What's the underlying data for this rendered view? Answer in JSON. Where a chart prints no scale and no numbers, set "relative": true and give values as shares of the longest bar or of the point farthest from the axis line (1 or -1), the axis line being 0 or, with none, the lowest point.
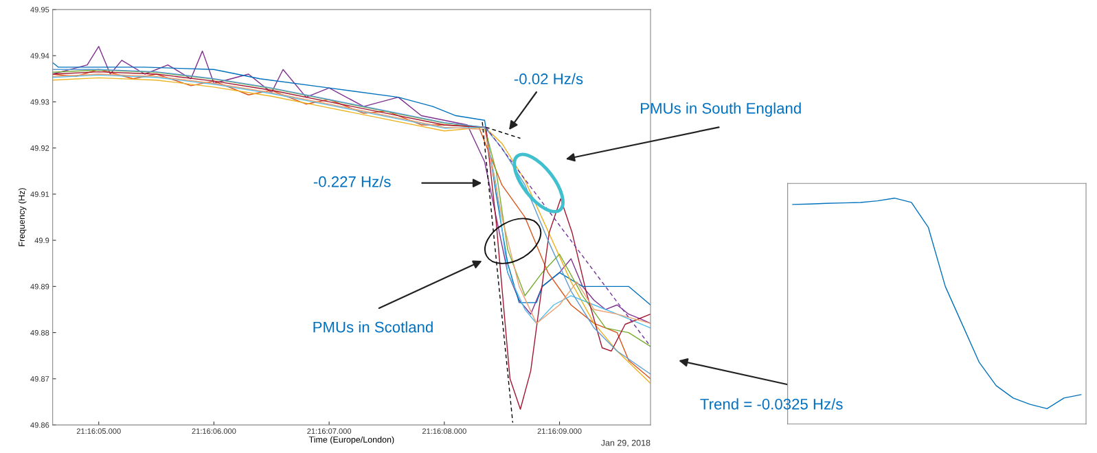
{
  "chart_data": [
    {
      "type": "line",
      "xlabel": "Time (Europe/London)",
      "ylabel": "Frequency (Hz)",
      "xlim": [
        "2018-01-29T21:16:04.6",
        "2018-01-29T21:16:09.79"
      ],
      "xticks": [
        {
          "value": "2018-01-29T21:16:05",
          "label": "21:16:05.000"
        },
        {
          "value": "2018-01-29T21:16:06",
          "label": "21:16:06.000"
        },
        {
          "value": "2018-01-29T21:16:07",
          "label": "21:16:07.000"
        },
        {
          "value": "2018-01-29T21:16:08",
          "label": "21:16:08.000"
        },
        {
          "value": "2018-01-29T21:16:09",
          "label": "21:16:09.000"
        }
      ],
      "ylim": [
        49.86,
        49.95
      ],
      "yticks": [
        49.86,
        49.87,
        49.88,
        49.89,
        49.9,
        49.91,
        49.92,
        49.93,
        49.94,
        49.95
      ],
      "line_style": "solid",
      "series": [
        {
          "color": "#7e2f8e",
          "x": [
            "2018-01-29T21:16:04.6",
            "2018-01-29T21:16:04.9",
            "2018-01-29T21:16:05.0",
            "2018-01-29T21:16:05.1",
            "2018-01-29T21:16:05.2",
            "2018-01-29T21:16:05.4",
            "2018-01-29T21:16:05.6",
            "2018-01-29T21:16:05.8",
            "2018-01-29T21:16:05.9",
            "2018-01-29T21:16:06.0",
            "2018-01-29T21:16:06.3",
            "2018-01-29T21:16:06.5",
            "2018-01-29T21:16:06.6",
            "2018-01-29T21:16:06.8",
            "2018-01-29T21:16:07.0",
            "2018-01-29T21:16:07.3",
            "2018-01-29T21:16:07.6",
            "2018-01-29T21:16:07.8",
            "2018-01-29T21:16:08.0",
            "2018-01-29T21:16:08.2",
            "2018-01-29T21:16:08.35",
            "2018-01-29T21:16:08.45",
            "2018-01-29T21:16:08.55",
            "2018-01-29T21:16:08.65",
            "2018-01-29T21:16:08.75",
            "2018-01-29T21:16:08.85",
            "2018-01-29T21:16:09.0",
            "2018-01-29T21:16:09.1",
            "2018-01-29T21:16:09.2",
            "2018-01-29T21:16:09.3",
            "2018-01-29T21:16:09.4",
            "2018-01-29T21:16:09.5",
            "2018-01-29T21:16:09.6",
            "2018-01-29T21:16:09.7",
            "2018-01-29T21:16:09.79"
          ],
          "values": [
            49.936,
            49.938,
            49.942,
            49.936,
            49.939,
            49.936,
            49.938,
            49.935,
            49.941,
            49.934,
            49.936,
            49.932,
            49.937,
            49.931,
            49.933,
            49.929,
            49.931,
            49.927,
            49.926,
            49.925,
            49.917,
            49.905,
            49.893,
            49.887,
            49.884,
            49.89,
            49.893,
            49.896,
            49.89,
            49.887,
            49.885,
            49.886,
            49.884,
            49.883,
            49.882
          ]
        },
        {
          "color": "#0072bd",
          "x": [
            "2018-01-29T21:16:04.6",
            "2018-01-29T21:16:04.65",
            "2018-01-29T21:16:05.4",
            "2018-01-29T21:16:06.0",
            "2018-01-29T21:16:06.4",
            "2018-01-29T21:16:07.0",
            "2018-01-29T21:16:07.6",
            "2018-01-29T21:16:07.9",
            "2018-01-29T21:16:08.1",
            "2018-01-29T21:16:08.35",
            "2018-01-29T21:16:08.45",
            "2018-01-29T21:16:08.55",
            "2018-01-29T21:16:08.65",
            "2018-01-29T21:16:08.8",
            "2018-01-29T21:16:08.85",
            "2018-01-29T21:16:09.0",
            "2018-01-29T21:16:09.2",
            "2018-01-29T21:16:09.4",
            "2018-01-29T21:16:09.6",
            "2018-01-29T21:16:09.79"
          ],
          "values": [
            49.9385,
            49.9375,
            49.9375,
            49.937,
            49.935,
            49.933,
            49.931,
            49.929,
            49.927,
            49.926,
            49.91,
            49.895,
            49.8865,
            49.8865,
            49.89,
            49.893,
            49.89,
            49.89,
            49.89,
            49.886
          ]
        },
        {
          "color": "#d95319",
          "x": [
            "2018-01-29T21:16:04.6",
            "2018-01-29T21:16:04.8",
            "2018-01-29T21:16:05.0",
            "2018-01-29T21:16:05.3",
            "2018-01-29T21:16:05.5",
            "2018-01-29T21:16:05.8",
            "2018-01-29T21:16:06.0",
            "2018-01-29T21:16:06.3",
            "2018-01-29T21:16:06.5",
            "2018-01-29T21:16:06.8",
            "2018-01-29T21:16:07.0",
            "2018-01-29T21:16:07.3",
            "2018-01-29T21:16:07.5",
            "2018-01-29T21:16:07.8",
            "2018-01-29T21:16:08.0",
            "2018-01-29T21:16:08.3",
            "2018-01-29T21:16:08.5",
            "2018-01-29T21:16:08.7",
            "2018-01-29T21:16:08.9",
            "2018-01-29T21:16:09.1",
            "2018-01-29T21:16:09.3",
            "2018-01-29T21:16:09.5",
            "2018-01-29T21:16:09.6",
            "2018-01-29T21:16:09.79"
          ],
          "values": [
            49.936,
            49.9355,
            49.937,
            49.935,
            49.936,
            49.9335,
            49.9345,
            49.9315,
            49.9325,
            49.9295,
            49.9305,
            49.9275,
            49.928,
            49.925,
            49.925,
            49.9245,
            49.912,
            49.905,
            49.893,
            49.886,
            49.882,
            49.88,
            49.874,
            49.87
          ]
        },
        {
          "color": "#edb120",
          "x": [
            "2018-01-29T21:16:04.6",
            "2018-01-29T21:16:05.0",
            "2018-01-29T21:16:05.5",
            "2018-01-29T21:16:06.0",
            "2018-01-29T21:16:06.5",
            "2018-01-29T21:16:07.0",
            "2018-01-29T21:16:07.5",
            "2018-01-29T21:16:08.0",
            "2018-01-29T21:16:08.35",
            "2018-01-29T21:16:08.5",
            "2018-01-29T21:16:08.7",
            "2018-01-29T21:16:08.9",
            "2018-01-29T21:16:09.1",
            "2018-01-29T21:16:09.3",
            "2018-01-29T21:16:09.5",
            "2018-01-29T21:16:09.79"
          ],
          "values": [
            49.9347,
            49.9352,
            49.9347,
            49.9332,
            49.9312,
            49.9287,
            49.9262,
            49.9237,
            49.9245,
            49.921,
            49.913,
            49.902,
            49.891,
            49.882,
            49.876,
            49.869
          ]
        },
        {
          "color": "#4dbeee",
          "x": [
            "2018-01-29T21:16:04.6",
            "2018-01-29T21:16:05.0",
            "2018-01-29T21:16:05.5",
            "2018-01-29T21:16:06.0",
            "2018-01-29T21:16:06.5",
            "2018-01-29T21:16:07.0",
            "2018-01-29T21:16:07.5",
            "2018-01-29T21:16:08.0",
            "2018-01-29T21:16:08.35",
            "2018-01-29T21:16:08.45",
            "2018-01-29T21:16:08.55",
            "2018-01-29T21:16:08.7",
            "2018-01-29T21:16:08.8",
            "2018-01-29T21:16:08.95",
            "2018-01-29T21:16:09.1",
            "2018-01-29T21:16:09.3",
            "2018-01-29T21:16:09.5",
            "2018-01-29T21:16:09.79"
          ],
          "values": [
            49.9353,
            49.9358,
            49.9353,
            49.9338,
            49.9318,
            49.9293,
            49.9268,
            49.9243,
            49.9245,
            49.912,
            49.893,
            49.885,
            49.882,
            49.886,
            49.888,
            49.886,
            49.884,
            49.881
          ]
        },
        {
          "color": "#77ac30",
          "x": [
            "2018-01-29T21:16:04.6",
            "2018-01-29T21:16:05.0",
            "2018-01-29T21:16:05.5",
            "2018-01-29T21:16:06.0",
            "2018-01-29T21:16:06.5",
            "2018-01-29T21:16:07.0",
            "2018-01-29T21:16:07.5",
            "2018-01-29T21:16:08.0",
            "2018-01-29T21:16:08.35",
            "2018-01-29T21:16:08.45",
            "2018-01-29T21:16:08.55",
            "2018-01-29T21:16:08.7",
            "2018-01-29T21:16:08.85",
            "2018-01-29T21:16:09.0",
            "2018-01-29T21:16:09.2",
            "2018-01-29T21:16:09.4",
            "2018-01-29T21:16:09.6",
            "2018-01-29T21:16:09.79"
          ],
          "values": [
            49.9364,
            49.9369,
            49.9364,
            49.9349,
            49.9329,
            49.9304,
            49.9279,
            49.9254,
            49.9245,
            49.915,
            49.898,
            49.888,
            49.893,
            49.897,
            49.888,
            49.881,
            49.88,
            49.877
          ]
        },
        {
          "color": "#a2142f",
          "x": [
            "2018-01-29T21:16:04.6",
            "2018-01-29T21:16:05.0",
            "2018-01-29T21:16:05.5",
            "2018-01-29T21:16:06.0",
            "2018-01-29T21:16:06.5",
            "2018-01-29T21:16:07.0",
            "2018-01-29T21:16:07.5",
            "2018-01-29T21:16:08.0",
            "2018-01-29T21:16:08.36",
            "2018-01-29T21:16:08.45",
            "2018-01-29T21:16:08.57",
            "2018-01-29T21:16:08.66",
            "2018-01-29T21:16:08.75",
            "2018-01-29T21:16:08.83",
            "2018-01-29T21:16:08.91",
            "2018-01-29T21:16:09.01",
            "2018-01-29T21:16:09.11",
            "2018-01-29T21:16:09.23",
            "2018-01-29T21:16:09.37",
            "2018-01-29T21:16:09.45",
            "2018-01-29T21:16:09.57",
            "2018-01-29T21:16:09.79"
          ],
          "values": [
            49.936,
            49.9365,
            49.936,
            49.9345,
            49.9325,
            49.93,
            49.9275,
            49.925,
            49.9245,
            49.904,
            49.87,
            49.8634,
            49.8717,
            49.8867,
            49.9016,
            49.909,
            49.9016,
            49.889,
            49.8767,
            49.876,
            49.8818,
            49.884
          ]
        },
        {
          "color": "#f0a070",
          "x": [
            "2018-01-29T21:16:04.6",
            "2018-01-29T21:16:05.0",
            "2018-01-29T21:16:05.5",
            "2018-01-29T21:16:06.0",
            "2018-01-29T21:16:06.5",
            "2018-01-29T21:16:07.0",
            "2018-01-29T21:16:07.5",
            "2018-01-29T21:16:08.0",
            "2018-01-29T21:16:08.35",
            "2018-01-29T21:16:08.5",
            "2018-01-29T21:16:08.65",
            "2018-01-29T21:16:08.8",
            "2018-01-29T21:16:09.0",
            "2018-01-29T21:16:09.15",
            "2018-01-29T21:16:09.3",
            "2018-01-29T21:16:09.5",
            "2018-01-29T21:16:09.79"
          ],
          "values": [
            49.9355,
            49.936,
            49.9355,
            49.934,
            49.932,
            49.9295,
            49.927,
            49.9245,
            49.924,
            49.905,
            49.89,
            49.882,
            49.886,
            49.891,
            49.885,
            49.884,
            49.882
          ]
        },
        {
          "color": "#5a9bd5",
          "x": [
            "2018-01-29T21:16:04.6",
            "2018-01-29T21:16:05.0",
            "2018-01-29T21:16:05.5",
            "2018-01-29T21:16:06.0",
            "2018-01-29T21:16:06.5",
            "2018-01-29T21:16:07.0",
            "2018-01-29T21:16:07.5",
            "2018-01-29T21:16:08.0",
            "2018-01-29T21:16:08.35",
            "2018-01-29T21:16:08.5",
            "2018-01-29T21:16:08.7",
            "2018-01-29T21:16:08.9",
            "2018-01-29T21:16:09.1",
            "2018-01-29T21:16:09.3",
            "2018-01-29T21:16:09.5",
            "2018-01-29T21:16:09.79"
          ],
          "values": [
            49.937,
            49.937,
            49.9365,
            49.935,
            49.933,
            49.9305,
            49.928,
            49.9255,
            49.9245,
            49.92,
            49.912,
            49.9,
            49.889,
            49.881,
            49.876,
            49.871
          ]
        },
        {
          "color": "#000000",
          "line_style": "dashed",
          "x": [
            "2018-01-29T21:16:08.33",
            "2018-01-29T21:16:08.594"
          ],
          "values": [
            49.9256,
            49.8605
          ]
        },
        {
          "color": "#000000",
          "line_style": "dashed",
          "x": [
            "2018-01-29T21:16:08.36",
            "2018-01-29T21:16:08.66"
          ],
          "values": [
            49.9245,
            49.9221
          ]
        },
        {
          "color": "#7030a0",
          "line_style": "dashed",
          "x": [
            "2018-01-29T21:16:08.36",
            "2018-01-29T21:16:09.79"
          ],
          "values": [
            49.9245,
            49.877
          ]
        }
      ],
      "annotations": [
        "-0.02 Hz/s",
        "PMUs in South England",
        "-0.227 Hz/s",
        "PMUs in Scotland",
        "Trend = -0.0325 Hz/s",
        "Jan 29, 2018"
      ]
    },
    {
      "type": "line",
      "relative": true,
      "categories": [
        null,
        null,
        null,
        null,
        null,
        null,
        null,
        null,
        null,
        null,
        null,
        null,
        null,
        null,
        null,
        null,
        null,
        null
      ],
      "series": [
        {
          "color": "#0072bd",
          "values": [
            0.972,
            0.974,
            0.977,
            0.979,
            0.981,
            0.988,
            1.0,
            0.981,
            0.87,
            0.609,
            0.441,
            0.273,
            0.17,
            0.115,
            0.087,
            0.068,
            0.115,
            0.13
          ]
        }
      ]
    }
  ]
}
